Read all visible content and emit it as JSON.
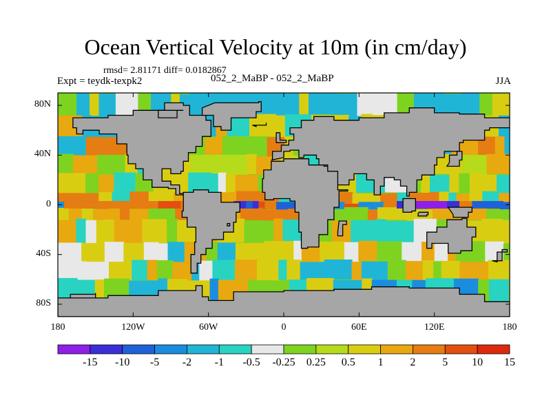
{
  "title": "Ocean Vertical Velocity at 10m (in cm/day)",
  "stats_text": "rmsd= 2.81171 diff= 0.0182867",
  "experiment": "Expt = teydk-texpk2",
  "case_label": "052_2_MaBP - 052_2_MaBP",
  "season": "JJA",
  "lat_labels": [
    "80N",
    "40N",
    "0",
    "40S",
    "80S"
  ],
  "lon_labels": [
    "180",
    "120W",
    "60W",
    "0",
    "60E",
    "120E",
    "180"
  ],
  "colorbar": {
    "colors": [
      "#8f1fe6",
      "#3a2fd6",
      "#1f62d8",
      "#1b8ddf",
      "#20b5d6",
      "#28d3c2",
      "#e8e8e8",
      "#7ed321",
      "#b5db1b",
      "#d9cd12",
      "#e8a80f",
      "#e57d12",
      "#e34f10",
      "#dd2a0c"
    ],
    "labels": [
      "-15",
      "-10",
      "-5",
      "-2",
      "-1",
      "-0.5",
      "-0.25",
      "0.25",
      "0.5",
      "1",
      "2",
      "5",
      "10",
      "15"
    ]
  },
  "colors": {
    "land": "#a6a6a6",
    "coast": "#000000",
    "ocean_base": "#7ed321"
  }
}
